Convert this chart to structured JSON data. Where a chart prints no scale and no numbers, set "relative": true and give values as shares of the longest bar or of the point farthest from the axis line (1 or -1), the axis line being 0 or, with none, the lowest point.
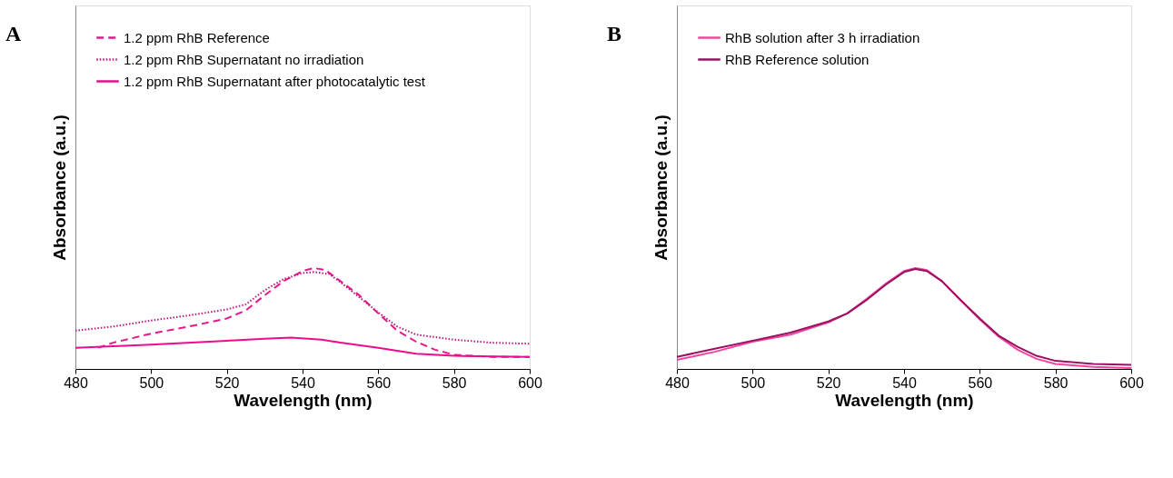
{
  "chart_data": [
    {
      "type": "line",
      "title": "A",
      "xlabel": "Wavelength (nm)",
      "ylabel": "Absorbance (a.u.)",
      "relative": true,
      "xlim": [
        480,
        600
      ],
      "xticks": [
        480,
        500,
        520,
        540,
        560,
        580,
        600
      ],
      "legend": "top left",
      "grid": false,
      "series": [
        {
          "name": "1.2 ppm RhB Reference",
          "color": "#e6198a",
          "line_style": "dashed",
          "x": [
            486,
            490,
            500,
            510,
            520,
            525,
            530,
            535,
            540,
            543,
            546,
            550,
            555,
            560,
            565,
            570,
            575,
            580,
            590,
            600
          ],
          "values": [
            0.21,
            0.26,
            0.35,
            0.42,
            0.5,
            0.58,
            0.73,
            0.87,
            0.97,
            1.0,
            0.98,
            0.87,
            0.73,
            0.55,
            0.38,
            0.27,
            0.19,
            0.14,
            0.12,
            0.12
          ]
        },
        {
          "name": "1.2 ppm RhB Supernatant no irradiation",
          "color": "#b8197d",
          "line_style": "dotted",
          "x": [
            480,
            490,
            500,
            510,
            520,
            525,
            530,
            535,
            540,
            543,
            547,
            550,
            555,
            560,
            565,
            570,
            580,
            590,
            600
          ],
          "values": [
            0.38,
            0.42,
            0.48,
            0.53,
            0.59,
            0.64,
            0.78,
            0.89,
            0.95,
            0.96,
            0.94,
            0.86,
            0.71,
            0.56,
            0.42,
            0.34,
            0.29,
            0.26,
            0.25
          ]
        },
        {
          "name": "1.2 ppm RhB Supernatant after  photocatalytic test",
          "color": "#ec0c8c",
          "line_style": "solid",
          "x": [
            480,
            500,
            520,
            530,
            537,
            545,
            550,
            560,
            570,
            580,
            600
          ],
          "values": [
            0.21,
            0.24,
            0.28,
            0.3,
            0.31,
            0.29,
            0.26,
            0.21,
            0.15,
            0.13,
            0.12
          ]
        }
      ]
    },
    {
      "type": "line",
      "title": "B",
      "xlabel": "Wavelength (nm)",
      "ylabel": "Absorbance (a.u.)",
      "relative": true,
      "xlim": [
        480,
        600
      ],
      "xticks": [
        480,
        500,
        520,
        540,
        560,
        580,
        600
      ],
      "legend": "top left",
      "grid": false,
      "series": [
        {
          "name": "RhB solution after 3 h irradiation",
          "color": "#f0469e",
          "line_style": "solid",
          "x": [
            480,
            490,
            500,
            510,
            520,
            525,
            530,
            535,
            540,
            543,
            546,
            550,
            555,
            560,
            565,
            570,
            575,
            580,
            590,
            600
          ],
          "values": [
            0.09,
            0.17,
            0.27,
            0.34,
            0.46,
            0.55,
            0.69,
            0.84,
            0.97,
            1.0,
            0.98,
            0.87,
            0.68,
            0.49,
            0.32,
            0.19,
            0.1,
            0.05,
            0.02,
            0.01
          ]
        },
        {
          "name": "RhB Reference solution",
          "color": "#9c1060",
          "line_style": "solid",
          "x": [
            480,
            490,
            500,
            505,
            510,
            520,
            525,
            530,
            535,
            540,
            543,
            546,
            550,
            555,
            560,
            565,
            570,
            575,
            580,
            590,
            600
          ],
          "values": [
            0.12,
            0.2,
            0.28,
            0.32,
            0.36,
            0.47,
            0.55,
            0.68,
            0.83,
            0.96,
            0.99,
            0.97,
            0.87,
            0.68,
            0.5,
            0.33,
            0.22,
            0.13,
            0.08,
            0.05,
            0.04
          ]
        }
      ]
    }
  ]
}
